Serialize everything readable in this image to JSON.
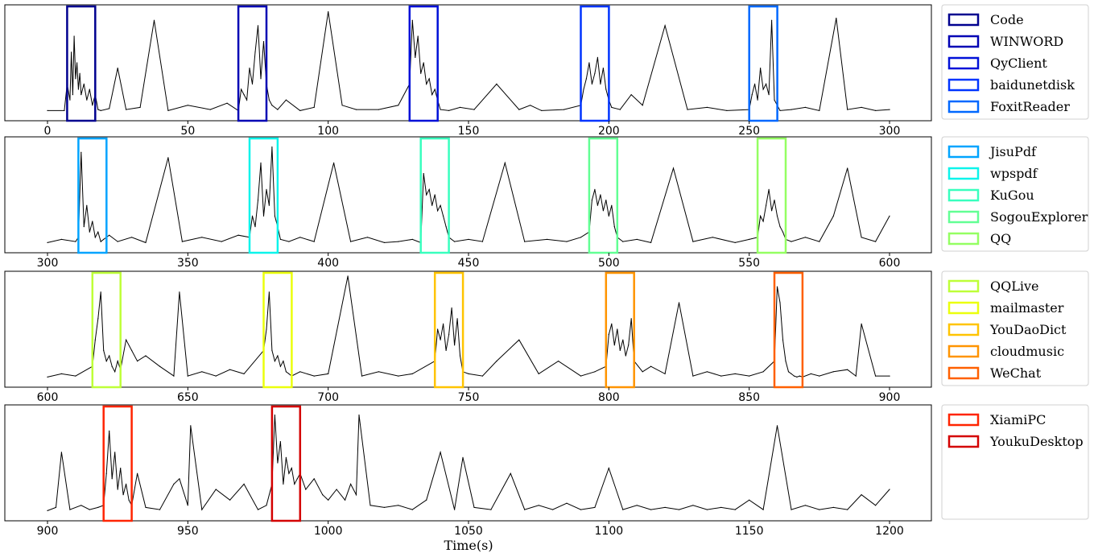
{
  "chart_data": {
    "type": "line",
    "xlabel": "Time(s)",
    "ylabel": "",
    "title": "",
    "grid": false,
    "legend_placement": "right",
    "line_color": "#000000",
    "panels": [
      {
        "xlim": [
          0,
          300
        ],
        "xticks": [
          0,
          50,
          100,
          150,
          200,
          250,
          300
        ],
        "legend": [
          {
            "name": "Code",
            "color": "#00008f",
            "range": [
              7,
              17
            ]
          },
          {
            "name": "WINWORD",
            "color": "#0000b4",
            "range": [
              68,
              78
            ]
          },
          {
            "name": "QyClient",
            "color": "#0010d8",
            "range": [
              129,
              139
            ]
          },
          {
            "name": "baidunetdisk",
            "color": "#0034ff",
            "range": [
              190,
              200
            ]
          },
          {
            "name": "FoxitReader",
            "color": "#0068ff",
            "range": [
              250,
              260
            ]
          }
        ],
        "series": [
          {
            "x": [
              0,
              6,
              7,
              8,
              8.5,
              9,
              9.5,
              10,
              10.5,
              11,
              11.5,
              12,
              13,
              14,
              15,
              16,
              17,
              18,
              19,
              22,
              25,
              28,
              33,
              38,
              43,
              50,
              58,
              64,
              68,
              69,
              70,
              71,
              72,
              73,
              74,
              75,
              76,
              77,
              78,
              79,
              80,
              82,
              85,
              90,
              95,
              100,
              105,
              110,
              118,
              125,
              129,
              130,
              131,
              132,
              133,
              134,
              135,
              136,
              137,
              138,
              139,
              140,
              143,
              147,
              152,
              160,
              168,
              172,
              176,
              184,
              190,
              191,
              192,
              193,
              194,
              195,
              196,
              197,
              198,
              199,
              200,
              201,
              204,
              208,
              212,
              220,
              228,
              235,
              242,
              250,
              251,
              252,
              253,
              254,
              255,
              256,
              257,
              258,
              259,
              260,
              261,
              265,
              270,
              275,
              281,
              285,
              290,
              295,
              300
            ],
            "y": [
              0.05,
              0.05,
              0.3,
              0.15,
              0.6,
              0.2,
              0.75,
              0.35,
              0.5,
              0.25,
              0.4,
              0.2,
              0.3,
              0.15,
              0.25,
              0.1,
              0.2,
              0.06,
              0.05,
              0.07,
              0.45,
              0.06,
              0.08,
              0.9,
              0.05,
              0.1,
              0.06,
              0.12,
              0.05,
              0.25,
              0.2,
              0.15,
              0.45,
              0.3,
              0.6,
              0.85,
              0.35,
              0.7,
              0.3,
              0.15,
              0.1,
              0.06,
              0.15,
              0.05,
              0.08,
              0.98,
              0.1,
              0.06,
              0.06,
              0.1,
              0.3,
              0.9,
              0.55,
              0.75,
              0.4,
              0.5,
              0.3,
              0.35,
              0.2,
              0.25,
              0.15,
              0.06,
              0.05,
              0.08,
              0.06,
              0.3,
              0.06,
              0.1,
              0.05,
              0.06,
              0.1,
              0.25,
              0.35,
              0.5,
              0.3,
              0.4,
              0.55,
              0.3,
              0.45,
              0.25,
              0.15,
              0.08,
              0.06,
              0.2,
              0.1,
              0.85,
              0.06,
              0.08,
              0.05,
              0.06,
              0.2,
              0.3,
              0.15,
              0.45,
              0.25,
              0.3,
              0.2,
              0.9,
              0.15,
              0.1,
              0.05,
              0.06,
              0.08,
              0.05,
              0.92,
              0.06,
              0.08,
              0.05,
              0.06
            ]
          }
        ]
      },
      {
        "xlim": [
          300,
          600
        ],
        "xticks": [
          300,
          350,
          400,
          450,
          500,
          550,
          600
        ],
        "legend": [
          {
            "name": "JisuPdf",
            "color": "#00a4ff",
            "range": [
              311,
              321
            ]
          },
          {
            "name": "wpspdf",
            "color": "#0cf4eb",
            "range": [
              372,
              382
            ]
          },
          {
            "name": "KuGou",
            "color": "#38ffbe",
            "range": [
              433,
              443
            ]
          },
          {
            "name": "SogouExplorer",
            "color": "#62ff94",
            "range": [
              493,
              503
            ]
          },
          {
            "name": "QQ",
            "color": "#94ff62",
            "range": [
              553,
              563
            ]
          }
        ],
        "series": [
          {
            "x": [
              300,
              305,
              310,
              311,
              312,
              313,
              314,
              315,
              316,
              317,
              318,
              319,
              320,
              322,
              325,
              330,
              335,
              343,
              348,
              355,
              362,
              368,
              372,
              373,
              374,
              375,
              376,
              377,
              378,
              379,
              380,
              381,
              382,
              383,
              386,
              390,
              395,
              402,
              408,
              414,
              420,
              425,
              430,
              433,
              434,
              435,
              436,
              437,
              438,
              439,
              440,
              441,
              442,
              443,
              445,
              450,
              455,
              463,
              470,
              478,
              485,
              490,
              493,
              494,
              495,
              496,
              497,
              498,
              499,
              500,
              501,
              502,
              503,
              505,
              510,
              515,
              523,
              530,
              537,
              545,
              550,
              553,
              554,
              555,
              556,
              557,
              558,
              559,
              560,
              561,
              562,
              563,
              565,
              570,
              575,
              580,
              585,
              590,
              595,
              600
            ],
            "y": [
              0.05,
              0.08,
              0.06,
              0.1,
              0.9,
              0.2,
              0.4,
              0.15,
              0.25,
              0.1,
              0.15,
              0.06,
              0.08,
              0.12,
              0.06,
              0.1,
              0.05,
              0.85,
              0.06,
              0.1,
              0.06,
              0.12,
              0.1,
              0.3,
              0.2,
              0.45,
              0.8,
              0.3,
              0.55,
              0.4,
              0.95,
              0.3,
              0.2,
              0.08,
              0.06,
              0.1,
              0.06,
              0.8,
              0.06,
              0.1,
              0.05,
              0.06,
              0.08,
              0.05,
              0.7,
              0.5,
              0.55,
              0.4,
              0.5,
              0.35,
              0.4,
              0.3,
              0.2,
              0.1,
              0.06,
              0.08,
              0.06,
              0.8,
              0.06,
              0.08,
              0.06,
              0.1,
              0.15,
              0.45,
              0.55,
              0.4,
              0.5,
              0.35,
              0.45,
              0.3,
              0.4,
              0.2,
              0.1,
              0.06,
              0.08,
              0.05,
              0.75,
              0.06,
              0.1,
              0.05,
              0.08,
              0.1,
              0.3,
              0.25,
              0.4,
              0.55,
              0.35,
              0.45,
              0.3,
              0.2,
              0.15,
              0.08,
              0.06,
              0.1,
              0.06,
              0.3,
              0.75,
              0.1,
              0.06,
              0.3
            ]
          }
        ]
      },
      {
        "xlim": [
          600,
          900
        ],
        "xticks": [
          600,
          650,
          700,
          750,
          800,
          850,
          900
        ],
        "legend": [
          {
            "name": "QQLive",
            "color": "#beff38",
            "range": [
              616,
              626
            ]
          },
          {
            "name": "mailmaster",
            "color": "#ebff0c",
            "range": [
              677,
              687
            ]
          },
          {
            "name": "YouDaoDict",
            "color": "#ffc400",
            "range": [
              738,
              748
            ]
          },
          {
            "name": "cloudmusic",
            "color": "#ff9400",
            "range": [
              799,
              809
            ]
          },
          {
            "name": "WeChat",
            "color": "#ff6000",
            "range": [
              859,
              869
            ]
          }
        ],
        "series": [
          {
            "x": [
              600,
              605,
              610,
              616,
              617,
              618,
              619,
              620,
              621,
              622,
              623,
              624,
              625,
              626,
              628,
              630,
              632,
              635,
              640,
              645,
              647,
              650,
              655,
              660,
              665,
              670,
              677,
              678,
              679,
              680,
              681,
              682,
              683,
              684,
              685,
              686,
              687,
              690,
              695,
              700,
              707,
              712,
              718,
              725,
              730,
              738,
              739,
              740,
              741,
              742,
              743,
              744,
              745,
              746,
              747,
              748,
              750,
              755,
              760,
              768,
              775,
              782,
              790,
              795,
              799,
              800,
              801,
              802,
              803,
              804,
              805,
              806,
              807,
              808,
              809,
              812,
              815,
              820,
              825,
              830,
              835,
              840,
              845,
              850,
              855,
              859,
              860,
              861,
              862,
              863,
              864,
              865,
              866,
              867,
              868,
              869,
              872,
              875,
              880,
              885,
              888,
              890,
              895,
              900
            ],
            "y": [
              0.05,
              0.08,
              0.06,
              0.15,
              0.4,
              0.6,
              0.85,
              0.3,
              0.2,
              0.25,
              0.15,
              0.1,
              0.2,
              0.12,
              0.4,
              0.3,
              0.2,
              0.25,
              0.15,
              0.06,
              0.85,
              0.06,
              0.1,
              0.06,
              0.12,
              0.08,
              0.3,
              0.5,
              0.85,
              0.3,
              0.2,
              0.25,
              0.15,
              0.2,
              0.1,
              0.08,
              0.06,
              0.1,
              0.06,
              0.08,
              1.0,
              0.06,
              0.1,
              0.06,
              0.08,
              0.2,
              0.5,
              0.4,
              0.55,
              0.3,
              0.45,
              0.7,
              0.35,
              0.6,
              0.25,
              0.1,
              0.08,
              0.06,
              0.2,
              0.4,
              0.08,
              0.2,
              0.06,
              0.1,
              0.15,
              0.45,
              0.55,
              0.35,
              0.5,
              0.3,
              0.4,
              0.25,
              0.35,
              0.6,
              0.2,
              0.1,
              0.15,
              0.08,
              0.75,
              0.06,
              0.1,
              0.06,
              0.08,
              0.06,
              0.1,
              0.2,
              0.9,
              0.75,
              0.4,
              0.2,
              0.1,
              0.08,
              0.06,
              0.05,
              0.06,
              0.05,
              0.08,
              0.06,
              0.1,
              0.12,
              0.06,
              0.55,
              0.06,
              0.06
            ]
          }
        ]
      },
      {
        "xlim": [
          900,
          1200
        ],
        "xticks": [
          900,
          950,
          1000,
          1050,
          1100,
          1150,
          1200
        ],
        "legend": [
          {
            "name": "XiamiPC",
            "color": "#ff2400",
            "range": [
              920,
              930
            ]
          },
          {
            "name": "YoukuDesktop",
            "color": "#d40000",
            "range": [
              980,
              990
            ]
          }
        ],
        "series": [
          {
            "x": [
              900,
              903,
              905,
              908,
              912,
              915,
              918,
              920,
              921,
              922,
              923,
              924,
              925,
              926,
              927,
              928,
              929,
              930,
              932,
              935,
              940,
              945,
              947,
              950,
              951,
              955,
              960,
              965,
              970,
              975,
              978,
              980,
              981,
              982,
              983,
              984,
              985,
              986,
              987,
              988,
              989,
              990,
              992,
              995,
              998,
              1000,
              1003,
              1006,
              1008,
              1010,
              1011,
              1015,
              1020,
              1025,
              1030,
              1035,
              1040,
              1045,
              1048,
              1052,
              1058,
              1065,
              1070,
              1075,
              1080,
              1085,
              1090,
              1095,
              1100,
              1105,
              1110,
              1115,
              1120,
              1125,
              1130,
              1135,
              1140,
              1145,
              1150,
              1155,
              1160,
              1165,
              1170,
              1175,
              1180,
              1185,
              1190,
              1195,
              1200
            ],
            "y": [
              0.05,
              0.08,
              0.6,
              0.06,
              0.1,
              0.06,
              0.08,
              0.1,
              0.4,
              0.8,
              0.35,
              0.6,
              0.25,
              0.45,
              0.2,
              0.3,
              0.15,
              0.1,
              0.4,
              0.08,
              0.06,
              0.3,
              0.35,
              0.1,
              0.85,
              0.06,
              0.25,
              0.15,
              0.3,
              0.06,
              0.1,
              0.3,
              0.95,
              0.5,
              0.7,
              0.3,
              0.55,
              0.4,
              0.45,
              0.3,
              0.35,
              0.4,
              0.25,
              0.35,
              0.2,
              0.15,
              0.25,
              0.15,
              0.3,
              0.2,
              0.95,
              0.1,
              0.08,
              0.1,
              0.06,
              0.15,
              0.6,
              0.06,
              0.55,
              0.08,
              0.06,
              0.4,
              0.06,
              0.1,
              0.06,
              0.12,
              0.06,
              0.08,
              0.45,
              0.06,
              0.1,
              0.06,
              0.08,
              0.06,
              0.1,
              0.06,
              0.08,
              0.06,
              0.15,
              0.06,
              0.85,
              0.06,
              0.1,
              0.06,
              0.08,
              0.06,
              0.2,
              0.1,
              0.25
            ]
          }
        ]
      }
    ]
  }
}
